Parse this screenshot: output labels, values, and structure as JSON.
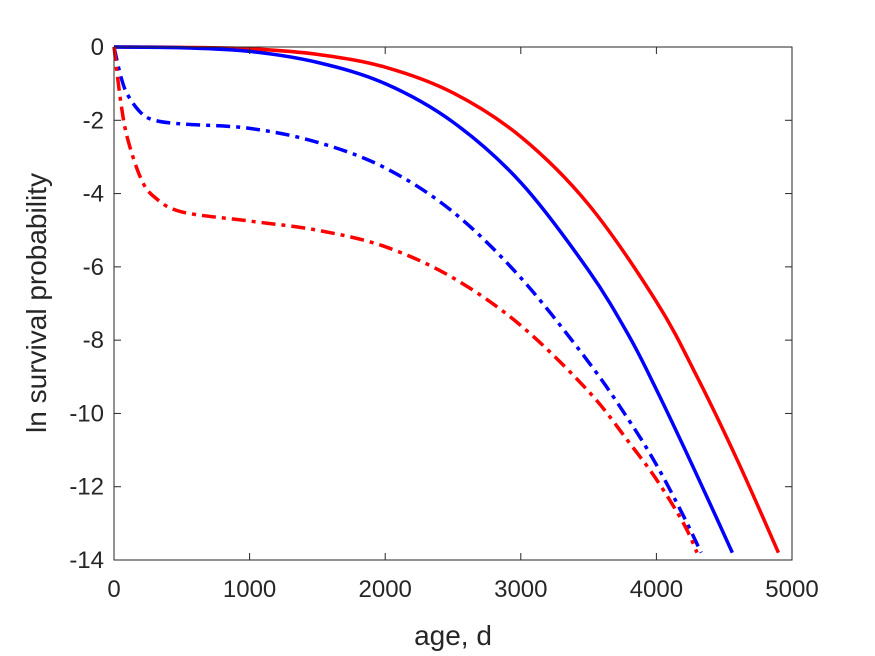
{
  "chart_data": {
    "type": "line",
    "title": "",
    "xlabel": "age, d",
    "ylabel": "ln survival probability",
    "xlim": [
      0,
      5000
    ],
    "ylim": [
      -14,
      0
    ],
    "xticks": [
      0,
      1000,
      2000,
      3000,
      4000,
      5000
    ],
    "yticks": [
      0,
      -2,
      -4,
      -6,
      -8,
      -10,
      -12,
      -14
    ],
    "xtick_labels": [
      "0",
      "1000",
      "2000",
      "3000",
      "4000",
      "5000"
    ],
    "ytick_labels": [
      "0",
      "-2",
      "-4",
      "-6",
      "-8",
      "-10",
      "-12",
      "-14"
    ],
    "grid": false,
    "legend": "none",
    "series": [
      {
        "color": "#ff0000",
        "style": "solid",
        "points": [
          [
            0,
            0
          ],
          [
            500,
            -0.01
          ],
          [
            1000,
            -0.05
          ],
          [
            1500,
            -0.2
          ],
          [
            2000,
            -0.55
          ],
          [
            2500,
            -1.25
          ],
          [
            3000,
            -2.45
          ],
          [
            3500,
            -4.3
          ],
          [
            4000,
            -6.95
          ],
          [
            4300,
            -9.0
          ],
          [
            4600,
            -11.3
          ],
          [
            4900,
            -13.8
          ]
        ]
      },
      {
        "color": "#0000ff",
        "style": "solid",
        "points": [
          [
            0,
            0
          ],
          [
            500,
            -0.02
          ],
          [
            1000,
            -0.12
          ],
          [
            1500,
            -0.42
          ],
          [
            2000,
            -1.0
          ],
          [
            2500,
            -2.05
          ],
          [
            3000,
            -3.7
          ],
          [
            3500,
            -6.1
          ],
          [
            3800,
            -7.9
          ],
          [
            4000,
            -9.35
          ],
          [
            4200,
            -10.9
          ],
          [
            4400,
            -12.5
          ],
          [
            4560,
            -13.8
          ]
        ]
      },
      {
        "color": "#0000ff",
        "style": "dashdot",
        "points": [
          [
            0,
            0
          ],
          [
            50,
            -0.8
          ],
          [
            100,
            -1.3
          ],
          [
            200,
            -1.8
          ],
          [
            300,
            -2.0
          ],
          [
            500,
            -2.1
          ],
          [
            1000,
            -2.22
          ],
          [
            1500,
            -2.6
          ],
          [
            2000,
            -3.3
          ],
          [
            2500,
            -4.5
          ],
          [
            3000,
            -6.3
          ],
          [
            3500,
            -8.6
          ],
          [
            3800,
            -10.2
          ],
          [
            4000,
            -11.4
          ],
          [
            4200,
            -12.8
          ],
          [
            4330,
            -13.8
          ]
        ]
      },
      {
        "color": "#ff0000",
        "style": "dashdot",
        "points": [
          [
            0,
            0
          ],
          [
            50,
            -1.5
          ],
          [
            100,
            -2.5
          ],
          [
            200,
            -3.6
          ],
          [
            300,
            -4.1
          ],
          [
            500,
            -4.5
          ],
          [
            1000,
            -4.75
          ],
          [
            1500,
            -5.0
          ],
          [
            2000,
            -5.45
          ],
          [
            2500,
            -6.3
          ],
          [
            3000,
            -7.6
          ],
          [
            3500,
            -9.4
          ],
          [
            3800,
            -10.8
          ],
          [
            4000,
            -11.8
          ],
          [
            4200,
            -13.0
          ],
          [
            4300,
            -13.8
          ]
        ]
      }
    ]
  }
}
